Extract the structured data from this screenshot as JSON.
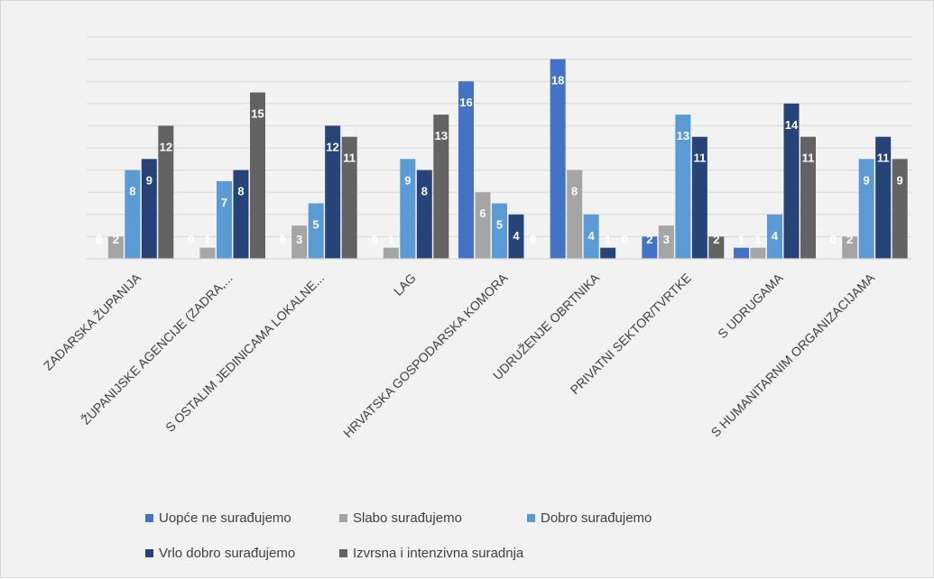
{
  "chart_data": {
    "type": "bar",
    "title": "",
    "xlabel": "",
    "ylabel": "",
    "ylim": [
      0,
      18
    ],
    "grid": true,
    "legend_position": "bottom",
    "categories": [
      "ZADARSKA ŽUPANIJA",
      "ŽUPANIJSKE AGENCIJE (ZADRA,...",
      "S OSTALIM JEDINICAMA LOKALNE...",
      "LAG",
      "HRVATSKA GOSPODARSKA KOMORA",
      "UDRUŽENJE OBRTNIKA",
      "PRIVATNI SEKTOR/TVRTKE",
      "S UDRUGAMA",
      "S HUMANITARNIM ORGANIZACIJAMA"
    ],
    "series": [
      {
        "name": "Uopće ne surađujemo",
        "color": "#4472c4",
        "values": [
          0,
          0,
          0,
          0,
          16,
          18,
          2,
          1,
          0
        ]
      },
      {
        "name": "Slabo surađujemo",
        "color": "#a5a5a5",
        "values": [
          2,
          1,
          3,
          1,
          6,
          8,
          3,
          1,
          2
        ]
      },
      {
        "name": "Dobro surađujemo",
        "color": "#5b9bd5",
        "values": [
          8,
          7,
          5,
          9,
          5,
          4,
          13,
          4,
          9
        ]
      },
      {
        "name": "Vrlo dobro surađujemo",
        "color": "#264478",
        "values": [
          9,
          8,
          12,
          8,
          4,
          1,
          11,
          14,
          11
        ]
      },
      {
        "name": "Izvrsna i intenzivna suradnja",
        "color": "#636363",
        "values": [
          12,
          15,
          11,
          13,
          0,
          0,
          2,
          11,
          9
        ]
      }
    ]
  }
}
